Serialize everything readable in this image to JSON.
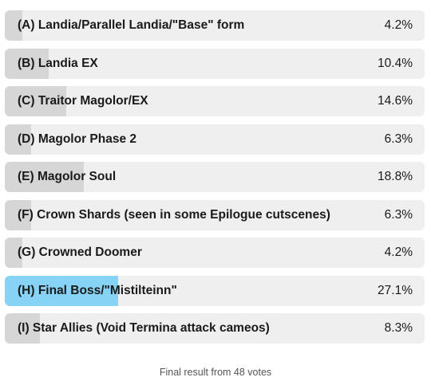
{
  "poll": {
    "options": [
      {
        "label": "(A) Landia/Parallel Landia/\"Base\" form",
        "percent_text": "4.2%",
        "fraction": 0.042,
        "winner": false
      },
      {
        "label": "(B) Landia EX",
        "percent_text": "10.4%",
        "fraction": 0.104,
        "winner": false
      },
      {
        "label": "(C) Traitor Magolor/EX",
        "percent_text": "14.6%",
        "fraction": 0.146,
        "winner": false
      },
      {
        "label": "(D) Magolor Phase 2",
        "percent_text": "6.3%",
        "fraction": 0.063,
        "winner": false
      },
      {
        "label": "(E) Magolor Soul",
        "percent_text": "18.8%",
        "fraction": 0.188,
        "winner": false
      },
      {
        "label": "(F) Crown Shards (seen in some Epilogue cutscenes)",
        "percent_text": "6.3%",
        "fraction": 0.063,
        "winner": false
      },
      {
        "label": "(G) Crowned Doomer",
        "percent_text": "4.2%",
        "fraction": 0.042,
        "winner": false
      },
      {
        "label": "(H) Final Boss/\"Mistilteinn\"",
        "percent_text": "27.1%",
        "fraction": 0.271,
        "winner": true
      },
      {
        "label": "(I) Star Allies (Void Termina attack cameos)",
        "percent_text": "8.3%",
        "fraction": 0.083,
        "winner": false
      }
    ],
    "footer": "Final result from 48 votes"
  },
  "colors": {
    "track": "#efefef",
    "fill": "#d6d6d6",
    "winner_fill": "#86d3f5"
  }
}
